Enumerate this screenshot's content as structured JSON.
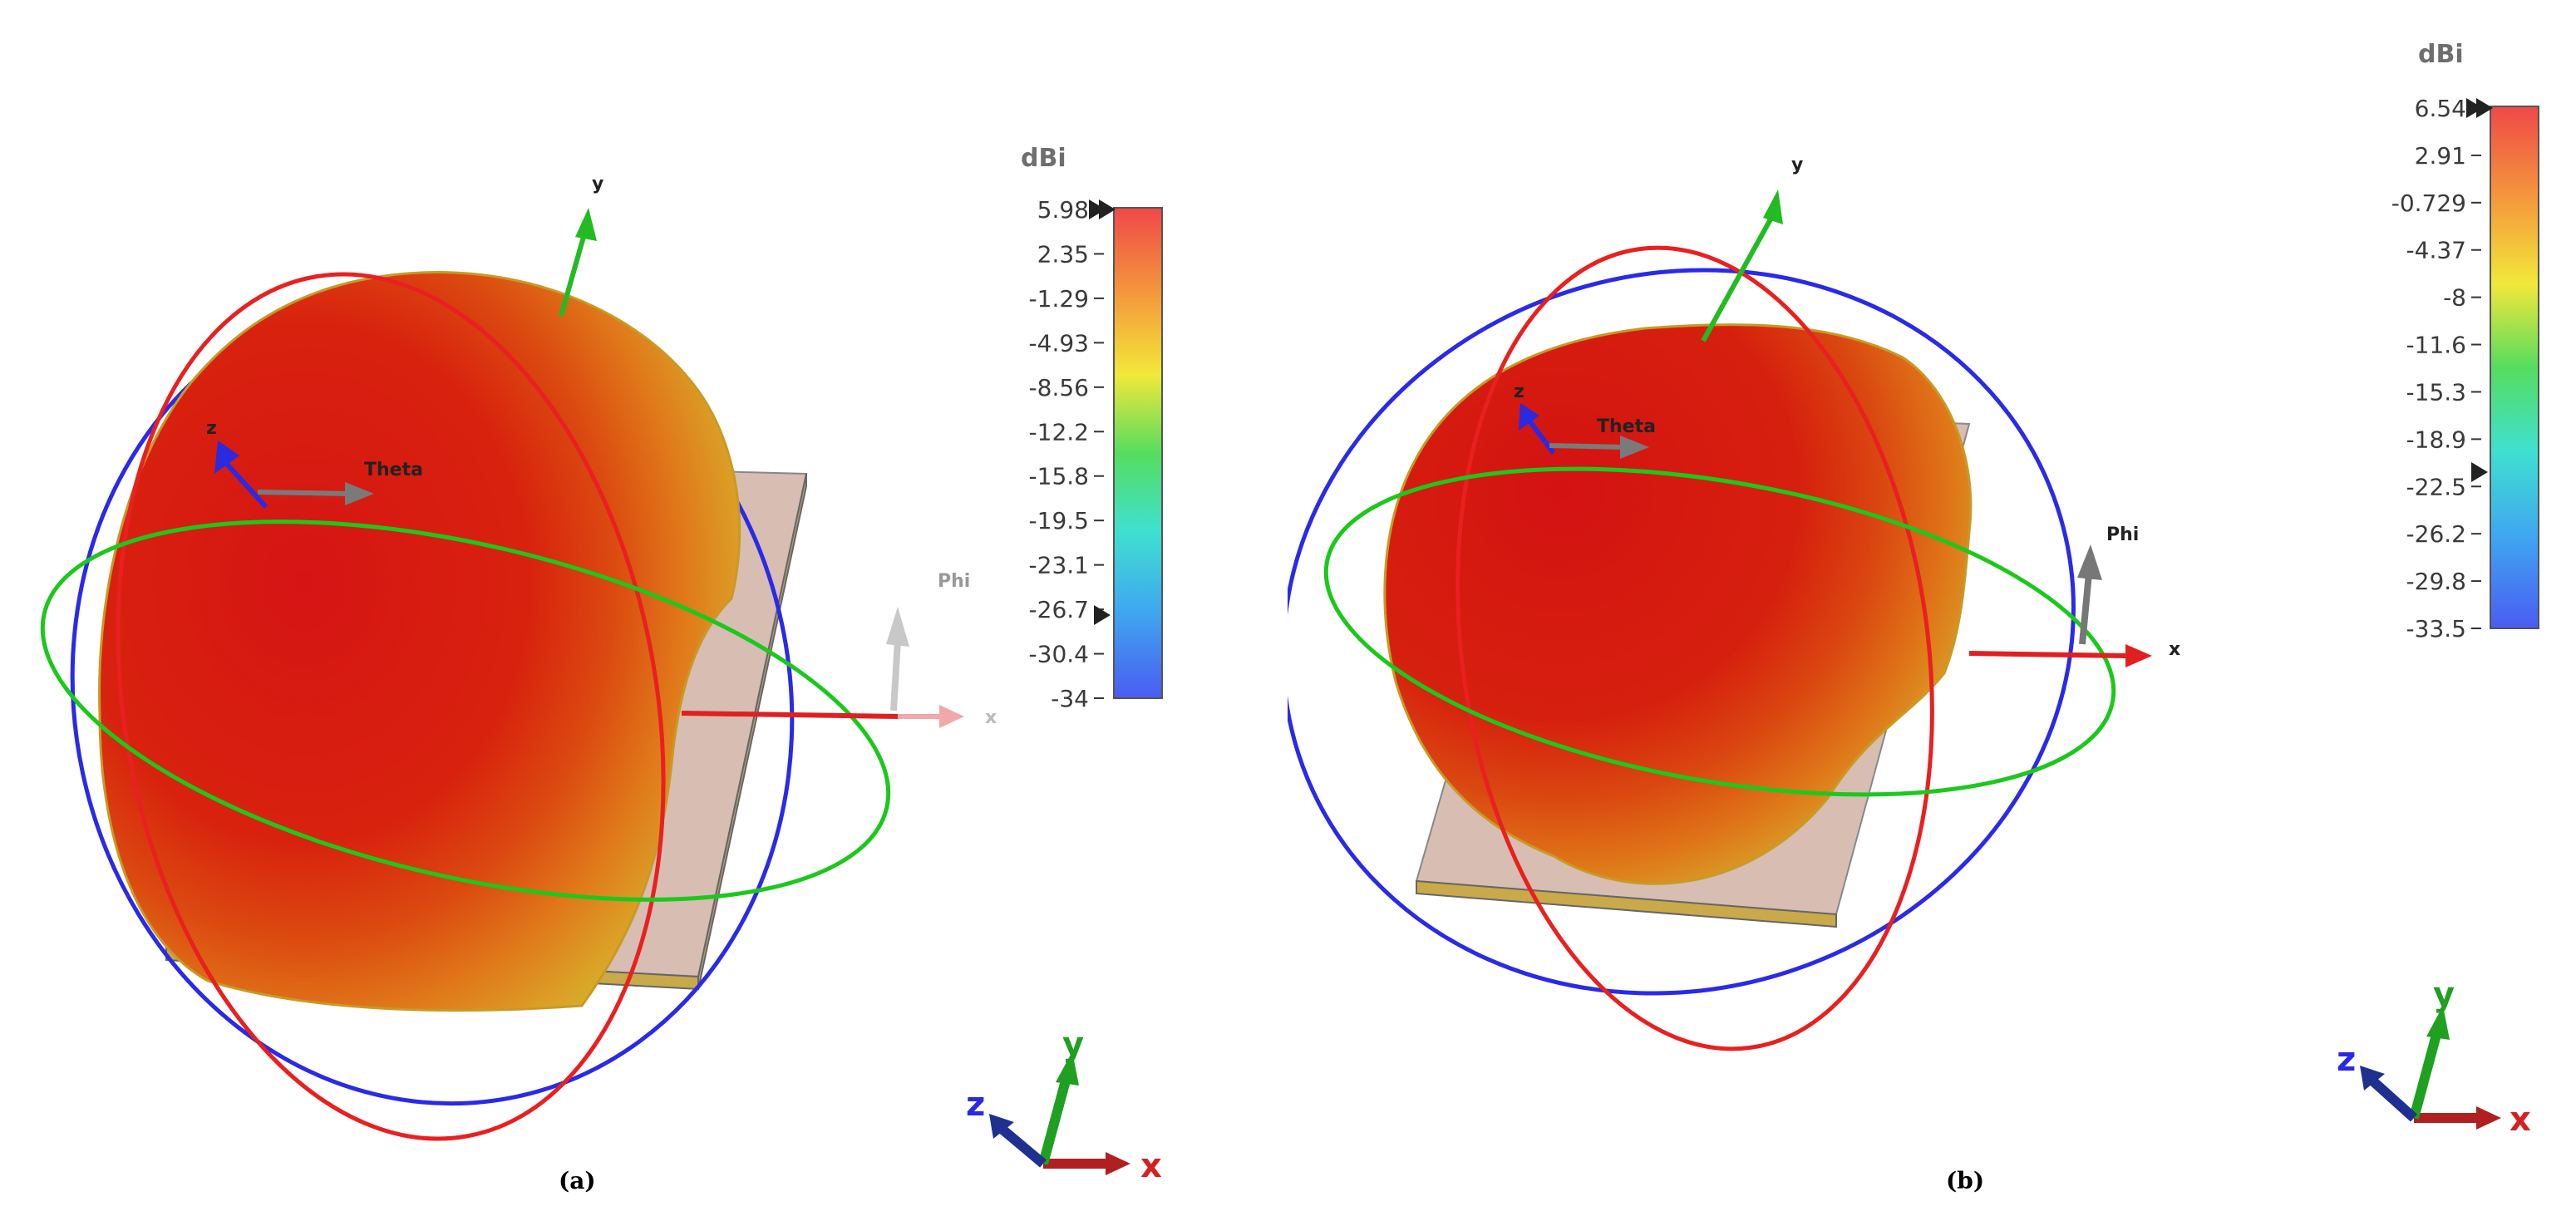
{
  "panels": [
    {
      "caption": "(a)",
      "colorbar": {
        "unit": "dBi",
        "ticks": [
          "5.98",
          "2.35",
          "-1.29",
          "-4.93",
          "-8.56",
          "-12.2",
          "-15.8",
          "-19.5",
          "-23.1",
          "-26.7",
          "-30.4",
          "-34"
        ]
      },
      "axis_labels": {
        "x": "x",
        "y": "y",
        "z": "z",
        "theta": "Theta",
        "phi": "Phi"
      },
      "triad_labels": {
        "x": "x",
        "y": "y",
        "z": "z"
      }
    },
    {
      "caption": "(b)",
      "colorbar": {
        "unit": "dBi",
        "ticks": [
          "6.54",
          "2.91",
          "-0.729",
          "-4.37",
          "-8",
          "-11.6",
          "-15.3",
          "-18.9",
          "-22.5",
          "-26.2",
          "-29.8",
          "-33.5"
        ]
      },
      "axis_labels": {
        "x": "x",
        "y": "y",
        "z": "z",
        "theta": "Theta",
        "phi": "Phi"
      },
      "triad_labels": {
        "x": "x",
        "y": "y",
        "z": "z"
      }
    }
  ],
  "colors": {
    "theta_ring": "#e82020",
    "phi_ring": "#2a2ae8",
    "equator_ring": "#1cc81c",
    "x_axis": "#e02020",
    "y_axis": "#22bb22",
    "z_axis": "#2a2ae0",
    "substrate": "#d9bfb4"
  }
}
